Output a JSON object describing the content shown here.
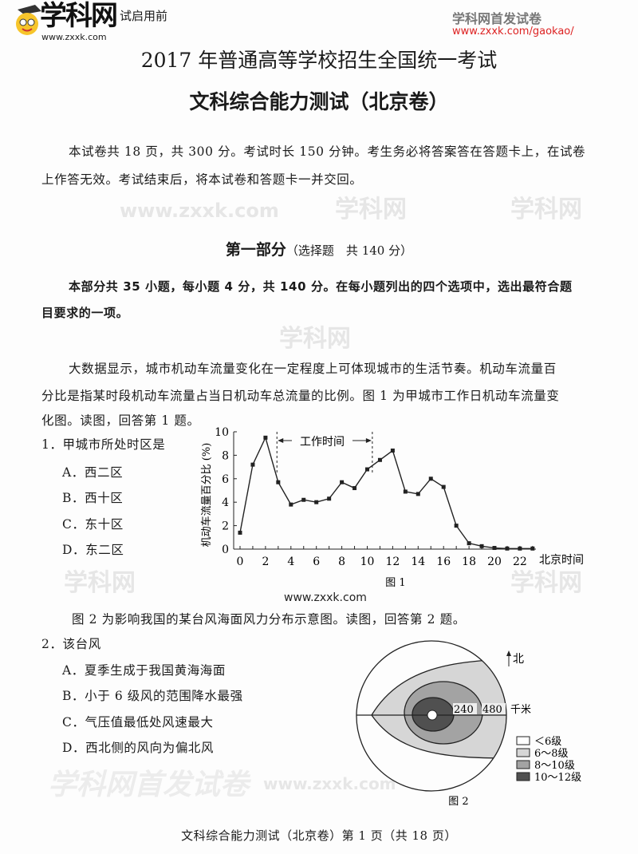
{
  "header": {
    "logo_text": "学科网",
    "logo_url": "www.zxxk.com",
    "secret_label": "试启用前",
    "right_title": "学科网首发试卷",
    "right_url": "www.zxxk.com/gaokao/"
  },
  "title": "2017 年普通高等学校招生全国统一考试",
  "subtitle": "文科综合能力测试（北京卷）",
  "intro": [
    "本试卷共 18 页，共 300 分。考试时长 150 分钟。考生务必将答案答在答题卡上，在试卷",
    "上作答无效。考试结束后，将本试卷和答题卡一并交回。"
  ],
  "part": {
    "title": "第一部分",
    "note": "（选择题　共 140 分）"
  },
  "part_intro": [
    "本部分共 35 小题，每小题 4 分，共 140 分。在每小题列出的四个选项中，选出最符合题",
    "目要求的一项。"
  ],
  "context1": [
    "大数据显示，城市机动车流量变化在一定程度上可体现城市的生活节奏。机动车流量百",
    "分比是指某时段机动车流量占当日机动车总流量的比例。图 1 为甲城市工作日机动车流量变",
    "化图。读图，回答第 1 题。"
  ],
  "q1": {
    "stem": "1．甲城市所处时区是",
    "options": [
      "A．西二区",
      "B．西十区",
      "C．东十区",
      "D．东二区"
    ]
  },
  "chart_data": {
    "type": "line",
    "title": "",
    "caption": "图 1",
    "xlabel": "北京时间",
    "ylabel": "机动车流量百分比 (%)",
    "x": [
      0,
      1,
      2,
      3,
      4,
      5,
      6,
      7,
      8,
      9,
      10,
      11,
      12,
      13,
      14,
      15,
      16,
      17,
      18,
      19,
      20,
      21,
      22,
      23
    ],
    "values": [
      1.4,
      7.2,
      9.5,
      5.7,
      3.8,
      4.2,
      4.0,
      4.3,
      5.7,
      5.2,
      6.8,
      7.6,
      8.4,
      4.9,
      4.7,
      6.0,
      5.3,
      2.0,
      0.5,
      0.25,
      0.1,
      0.05,
      0.05,
      0.05
    ],
    "xticks": [
      "0",
      "2",
      "4",
      "6",
      "8",
      "10",
      "12",
      "14",
      "16",
      "18",
      "20",
      "22"
    ],
    "yticks": [
      "0",
      "2",
      "4",
      "6",
      "8",
      "10"
    ],
    "xlim": [
      0,
      24
    ],
    "ylim": [
      0,
      10
    ],
    "annotation": {
      "label": "工作时间",
      "from": 2.9,
      "to": 10.4
    },
    "grid": false
  },
  "context2": "图 2 为影响我国的某台风海面风力分布示意图。读图，回答第 2 题。",
  "q2": {
    "stem": "2．该台风",
    "options": [
      "A．夏季生成于我国黄海海面",
      "B．小于 6 级风的范围降水最强",
      "C．气压值最低处风速最大",
      "D．西北侧的风向为偏北风"
    ]
  },
  "figure2": {
    "caption": "图 2",
    "north": "北",
    "scale": [
      "240",
      "480"
    ],
    "unit": "千米",
    "legend": [
      {
        "label": "＜6级",
        "color": "#ffffff"
      },
      {
        "label": "6～8级",
        "color": "#d6d6d6"
      },
      {
        "label": "8～10级",
        "color": "#a3a3a3"
      },
      {
        "label": "10～12级",
        "color": "#505050"
      }
    ]
  },
  "footer": "文科综合能力测试（北京卷）第 1 页（共 18 页）",
  "watermarks": {
    "site": "学科网",
    "url": "www.zxxk.com",
    "banner": "学科网首发试卷"
  }
}
